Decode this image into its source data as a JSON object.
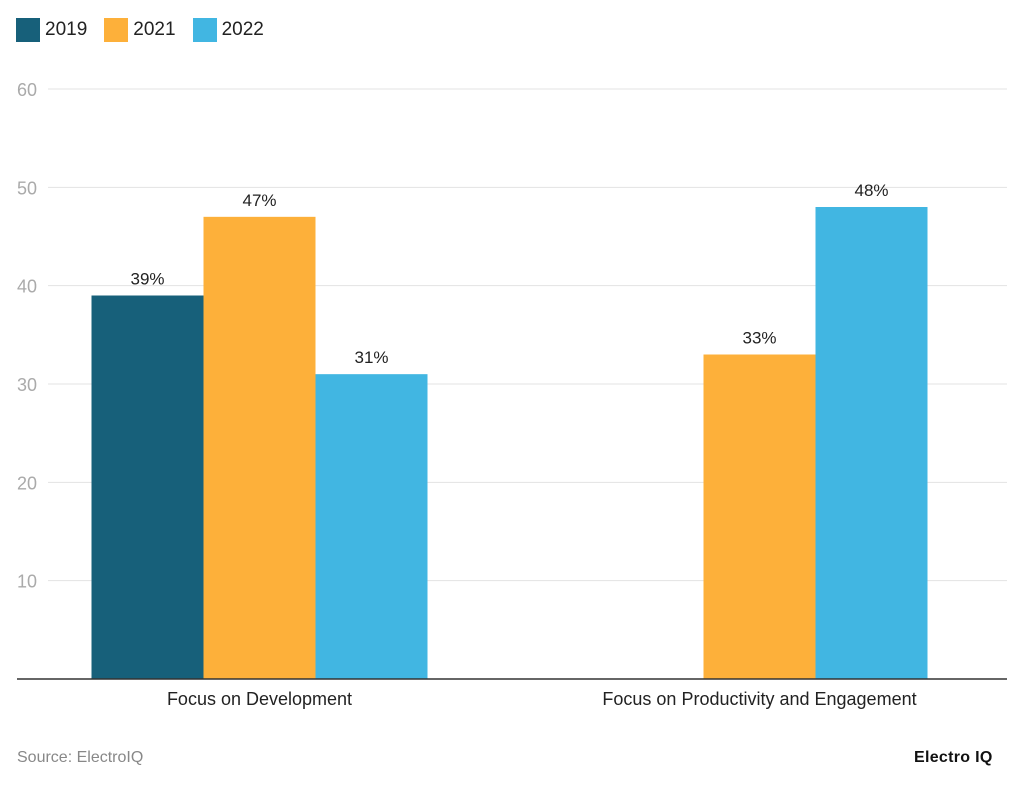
{
  "chart_data": {
    "type": "bar",
    "categories": [
      "Focus on Development",
      "Focus on Productivity and Engagement"
    ],
    "series": [
      {
        "name": "2019",
        "color": "#17607a",
        "values": [
          39,
          null
        ]
      },
      {
        "name": "2021",
        "color": "#fdb03a",
        "values": [
          47,
          33
        ]
      },
      {
        "name": "2022",
        "color": "#41b6e2",
        "values": [
          31,
          48
        ]
      }
    ],
    "data_labels": [
      [
        "39%",
        null
      ],
      [
        "47%",
        "33%"
      ],
      [
        "31%",
        "48%"
      ]
    ],
    "yticks": [
      10,
      20,
      30,
      40,
      50,
      60
    ],
    "ylim": [
      0,
      60
    ],
    "grid": true,
    "legend_position": "top-left"
  },
  "footer": {
    "source": "Source: ElectroIQ",
    "logo": "Electro IQ"
  }
}
